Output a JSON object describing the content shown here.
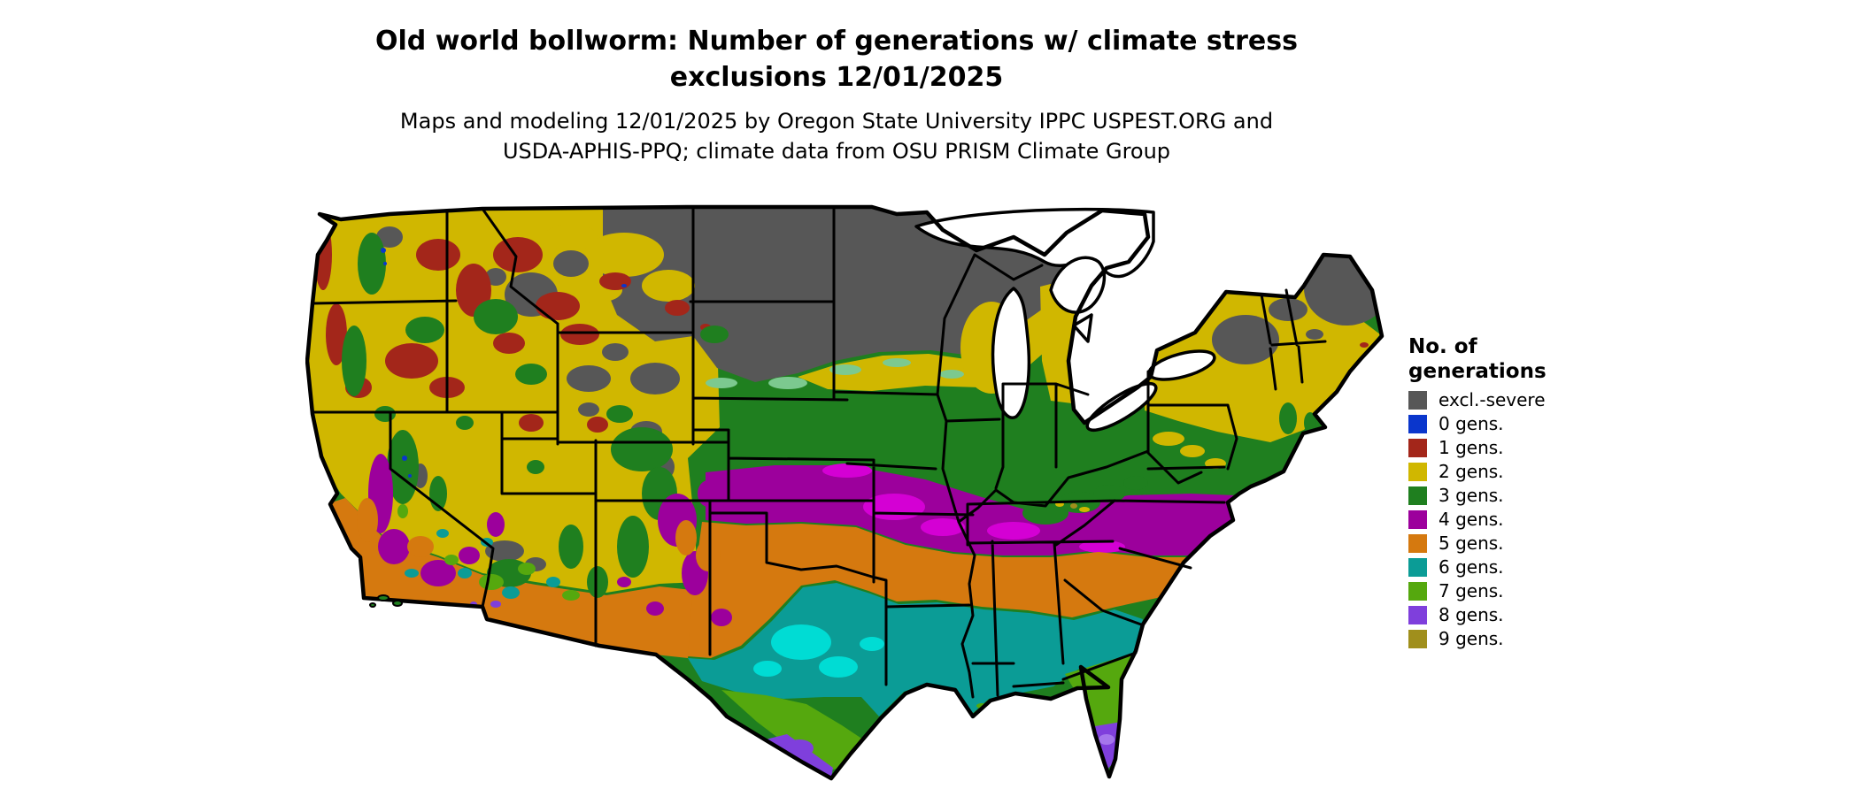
{
  "page": {
    "background": "#ffffff"
  },
  "title": {
    "line1": "Old world bollworm: Number of generations w/ climate stress",
    "line2": "exclusions 12/01/2025"
  },
  "subtitle": {
    "line1": "Maps and modeling 12/01/2025 by Oregon State University IPPC USPEST.ORG and",
    "line2": "USDA-APHIS-PPQ; climate data from OSU PRISM Climate Group"
  },
  "legend": {
    "title_line1": "No. of",
    "title_line2": "generations",
    "items": [
      {
        "key": "excl",
        "label": "excl.-severe",
        "color": "#575757"
      },
      {
        "key": "g0",
        "label": "0 gens.",
        "color": "#0a36cc"
      },
      {
        "key": "g1",
        "label": "1 gens.",
        "color": "#a3261a"
      },
      {
        "key": "g2",
        "label": "2 gens.",
        "color": "#d0b700"
      },
      {
        "key": "g3",
        "label": "3 gens.",
        "color": "#1f7f1f"
      },
      {
        "key": "g4",
        "label": "4 gens.",
        "color": "#9c009c"
      },
      {
        "key": "g5",
        "label": "5 gens.",
        "color": "#d5790f"
      },
      {
        "key": "g6",
        "label": "6 gens.",
        "color": "#0b9c96"
      },
      {
        "key": "g7",
        "label": "7 gens.",
        "color": "#55a80e"
      },
      {
        "key": "g8",
        "label": "8 gens.",
        "color": "#7f3fdc"
      },
      {
        "key": "g9",
        "label": "9 gens.",
        "color": "#a08f1c"
      }
    ]
  },
  "map": {
    "type": "choropleth-raster",
    "region": "Contiguous United States",
    "border_color": "#000000",
    "water_color": "#ffffff",
    "transition_colors": {
      "bright_cyan": "#00dcd4",
      "bright_magenta": "#d400d4",
      "mint_green": "#7cc98f",
      "light_violet": "#a576ec"
    }
  }
}
